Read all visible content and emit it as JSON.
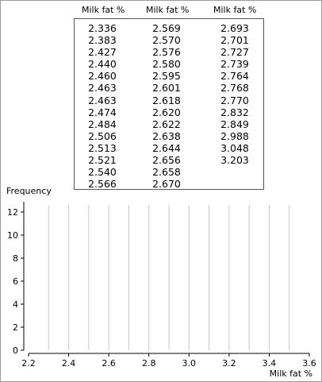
{
  "table": {
    "columns": [
      {
        "header": "Milk fat %",
        "values": [
          "2.336",
          "2.383",
          "2.427",
          "2.440",
          "2.460",
          "2.463",
          "2.463",
          "2.474",
          "2.484",
          "2.506",
          "2.513",
          "2.521",
          "2.540",
          "2.566"
        ]
      },
      {
        "header": "Milk fat %",
        "values": [
          "2.569",
          "2.570",
          "2.576",
          "2.580",
          "2.595",
          "2.601",
          "2.618",
          "2.620",
          "2.622",
          "2.638",
          "2.644",
          "2.656",
          "2.658",
          "2.670"
        ]
      },
      {
        "header": "Milk fat %",
        "values": [
          "2.693",
          "2.701",
          "2.727",
          "2.739",
          "2.764",
          "2.768",
          "2.770",
          "2.832",
          "2.849",
          "2.988",
          "3.048",
          "3.203"
        ]
      }
    ]
  },
  "chart_data": {
    "type": "bar",
    "xlabel": "Milk fat %",
    "ylabel": "Frequency",
    "xlim": [
      2.2,
      3.6
    ],
    "ylim": [
      0,
      13
    ],
    "x_ticks": [
      "2.2",
      "2.4",
      "2.6",
      "2.8",
      "3.0",
      "3.2",
      "3.4",
      "3.6"
    ],
    "y_ticks": [
      "0",
      "2",
      "4",
      "6",
      "8",
      "10",
      "12"
    ],
    "gridlines_x": [
      2.3,
      2.4,
      2.5,
      2.6,
      2.7,
      2.8,
      2.9,
      3.0,
      3.1,
      3.2,
      3.3,
      3.4,
      3.5
    ],
    "bars": []
  }
}
